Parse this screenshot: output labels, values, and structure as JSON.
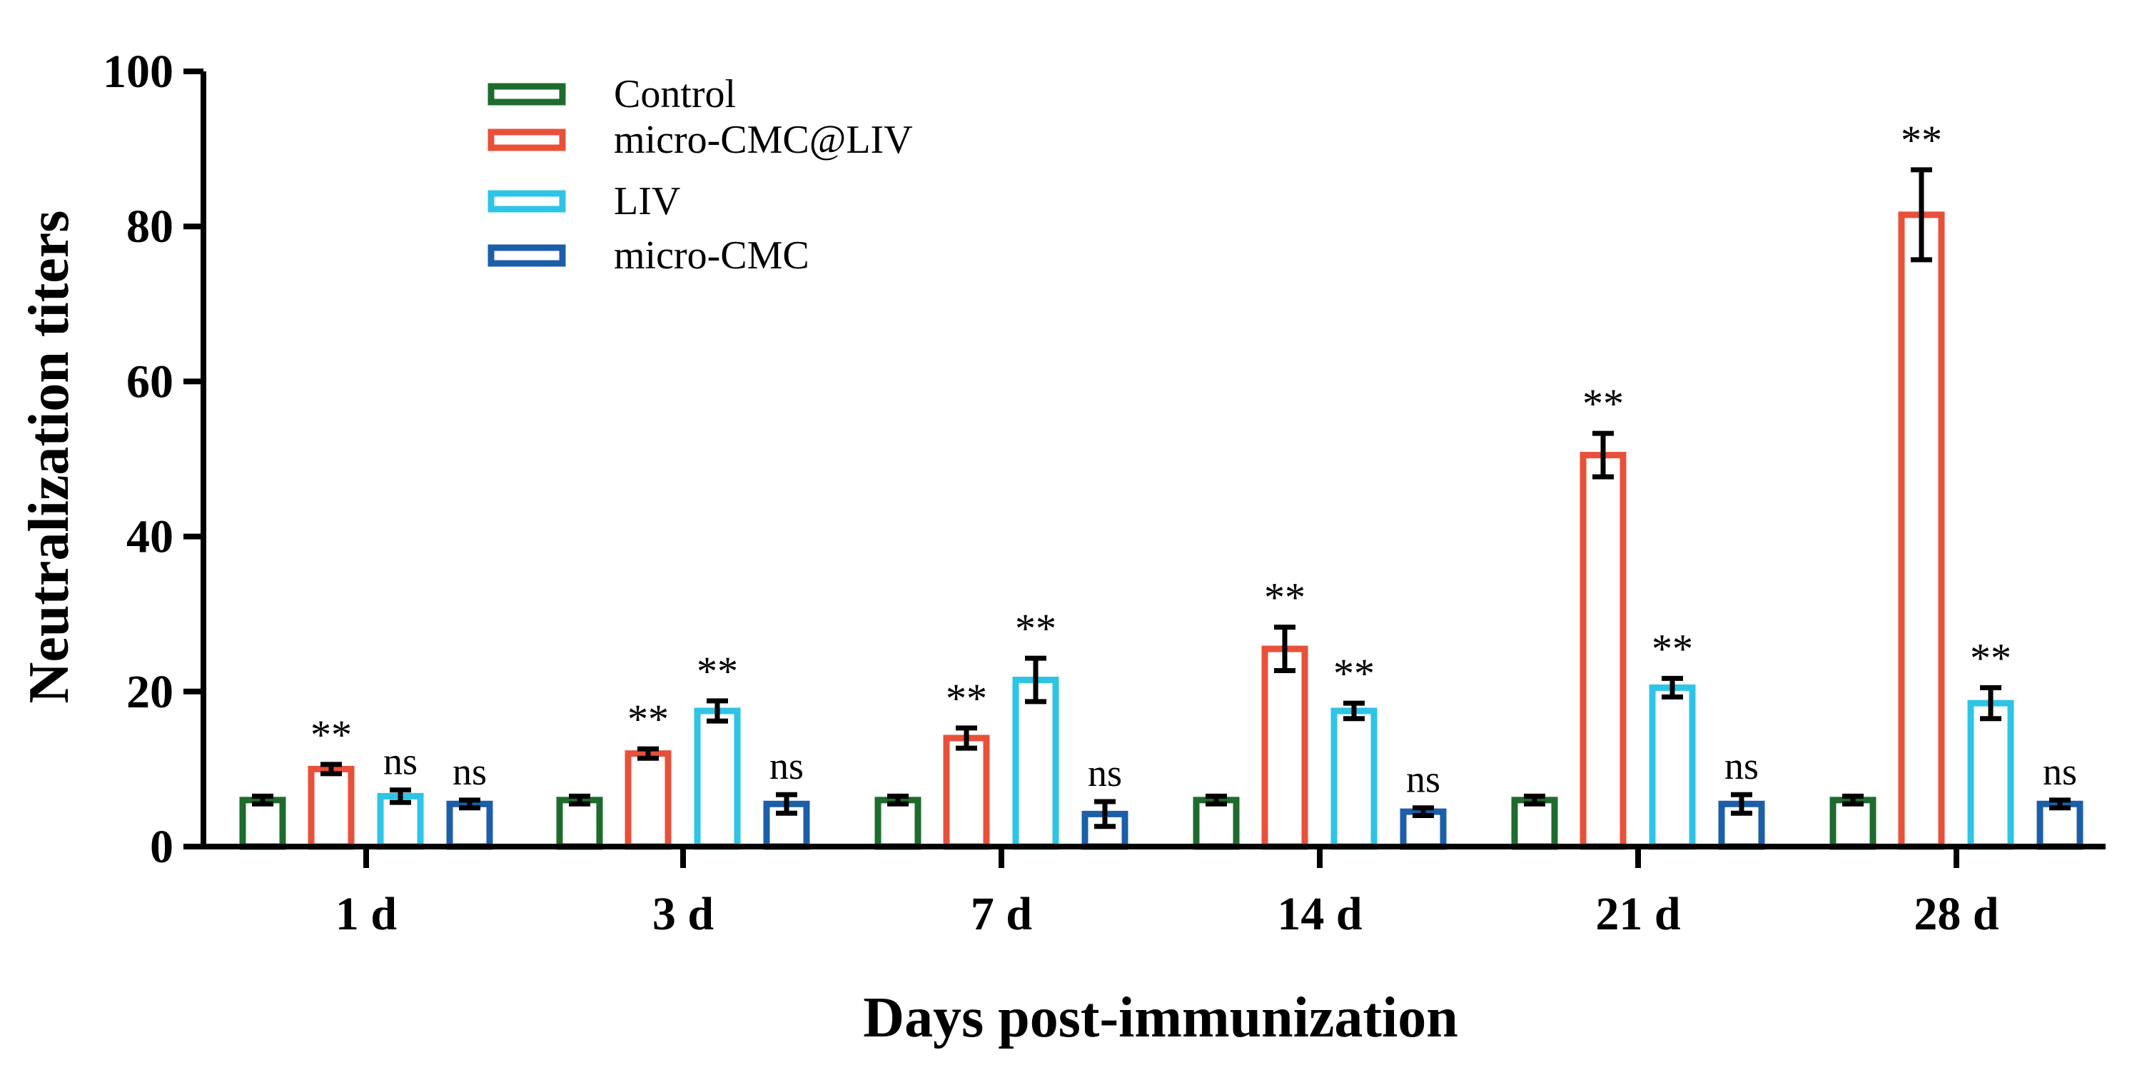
{
  "chart_data": {
    "type": "bar",
    "title": "",
    "xlabel": "Days post-immunization",
    "ylabel": "Neutralization titers",
    "ylim": [
      0,
      100
    ],
    "yticks": [
      "0",
      "20",
      "40",
      "60",
      "80",
      "100"
    ],
    "categories": [
      "1 d",
      "3 d",
      "7 d",
      "14 d",
      "21 d",
      "28 d"
    ],
    "legend_position": "top-left",
    "series": [
      {
        "name": "Control",
        "color": "#1e6b2e",
        "values": [
          6,
          6,
          6,
          6,
          6,
          6
        ],
        "errors": [
          0.5,
          0.5,
          0.5,
          0.5,
          0.5,
          0.5
        ],
        "significance": [
          "",
          "",
          "",
          "",
          "",
          ""
        ]
      },
      {
        "name": "micro-CMC@LIV",
        "color": "#e8503a",
        "values": [
          10,
          12,
          14,
          25.5,
          50.5,
          81.5
        ],
        "errors": [
          0.6,
          0.6,
          1.3,
          2.8,
          2.8,
          5.8
        ],
        "significance": [
          "**",
          "**",
          "**",
          "**",
          "**",
          "**"
        ]
      },
      {
        "name": "LIV",
        "color": "#2ec4e6",
        "values": [
          6.5,
          17.5,
          21.5,
          17.5,
          20.5,
          18.5
        ],
        "errors": [
          0.8,
          1.3,
          2.8,
          1.0,
          1.2,
          2.0
        ],
        "significance": [
          "ns",
          "**",
          "**",
          "**",
          "**",
          "**"
        ]
      },
      {
        "name": "micro-CMC",
        "color": "#1c5fa8",
        "values": [
          5.5,
          5.5,
          4.2,
          4.5,
          5.5,
          5.5
        ],
        "errors": [
          0.5,
          1.2,
          1.6,
          0.5,
          1.2,
          0.5
        ],
        "significance": [
          "ns",
          "ns",
          "ns",
          "ns",
          "ns",
          "ns"
        ]
      }
    ]
  }
}
